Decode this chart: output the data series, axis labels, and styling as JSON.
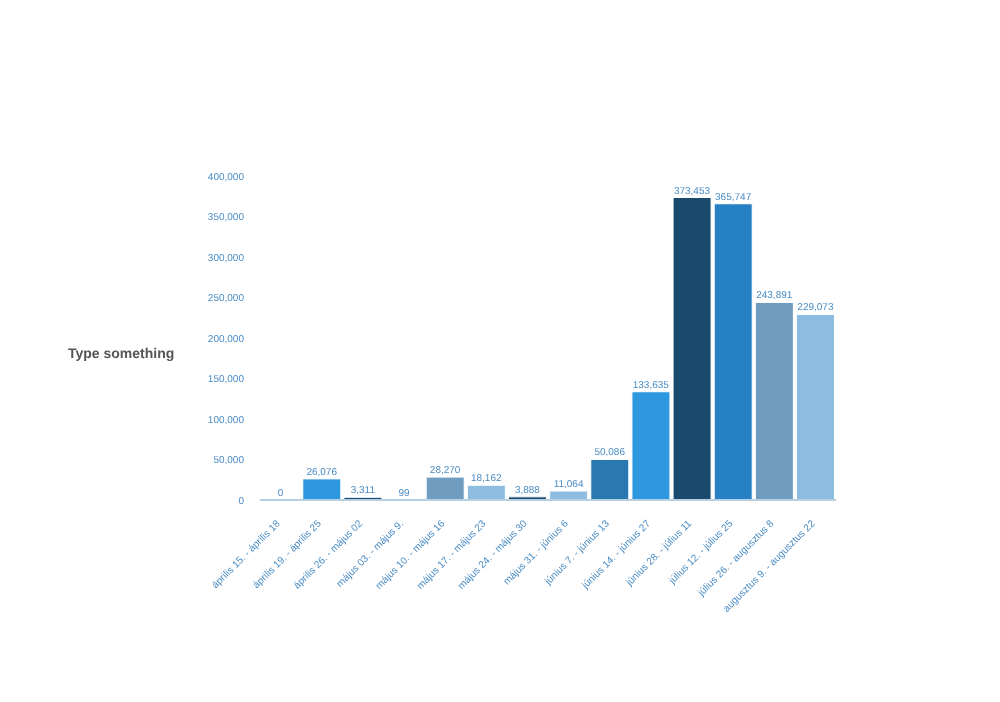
{
  "chart_data": {
    "type": "bar",
    "ylabel": "Type something",
    "categories": [
      "április 15. - április 18",
      "április 19. - április 25",
      "április 26. - május 02",
      "május 03. - május 9.",
      "május 10. - május 16",
      "május 17. - május 23",
      "május 24. - május 30",
      "május 31. - június 6",
      "június 7. - június 13",
      "június 14. - június 27",
      "június 28. - július 11",
      "július 12. - július 25",
      "július 26. - augusztus 8",
      "augusztus 9. - augusztus 22"
    ],
    "values": [
      0,
      26076,
      3311,
      99,
      28270,
      18162,
      3888,
      11064,
      50086,
      133635,
      373453,
      365747,
      243891,
      229073
    ],
    "value_labels": [
      "0",
      "26,076",
      "3,311",
      "99",
      "28,270",
      "18,162",
      "3,888",
      "11,064",
      "50,086",
      "133,635",
      "373,453",
      "365,747",
      "243,891",
      "229,073"
    ],
    "colors": [
      "#8cbde0",
      "#2d97e0",
      "#1a4a6e",
      "#1a4a6e",
      "#6f9cbf",
      "#8cbde0",
      "#1a4a6e",
      "#8cbde0",
      "#2a78b0",
      "#2d97e0",
      "#1a4a6e",
      "#2880c4",
      "#6f9cbf",
      "#8cbde0"
    ],
    "ylim": [
      0,
      400000
    ],
    "yticks": [
      0,
      {
        "value": 50000,
        "label": "50,000"
      },
      {
        "value": 100000,
        "label": "100,000"
      },
      {
        "value": 150000,
        "label": "150,000"
      },
      {
        "value": 200000,
        "label": "200,000"
      },
      {
        "value": 250000,
        "label": "250,000"
      },
      {
        "value": 300000,
        "label": "300,000"
      },
      {
        "value": 350000,
        "label": "350,000"
      },
      {
        "value": 400000,
        "label": "400,000"
      }
    ]
  }
}
